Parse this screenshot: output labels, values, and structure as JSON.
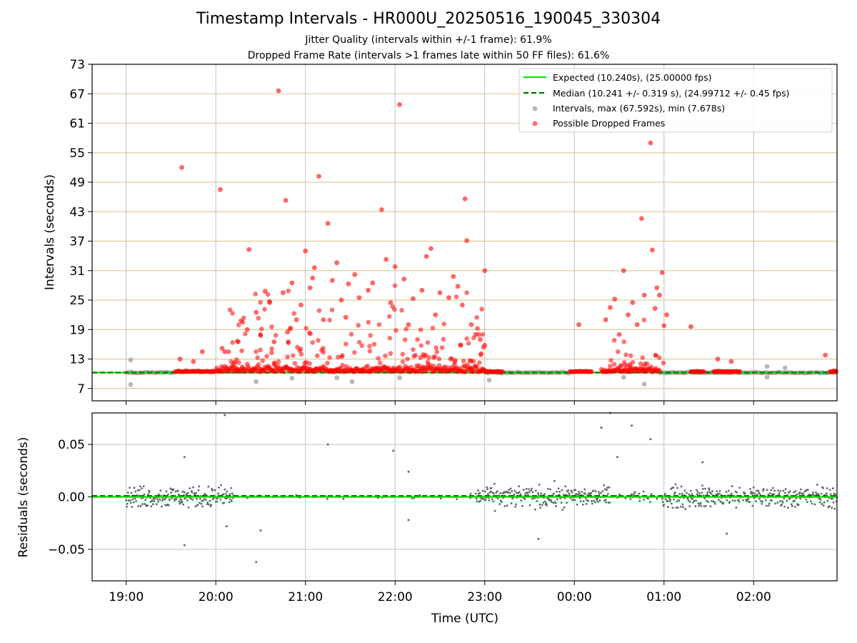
{
  "header": {
    "title": "Timestamp Intervals - HR000U_20250516_190045_330304",
    "subtitle_1": "Jitter Quality (intervals within +/-1 frame): 61.9%",
    "subtitle_2": "Dropped Frame Rate (intervals >1 frames late within 50 FF files): 61.6%"
  },
  "chart_data": [
    {
      "type": "scatter",
      "panel": "intervals",
      "ylabel": "Intervals (seconds)",
      "ylim": [
        4.5,
        73
      ],
      "yticks": [
        "7",
        "13",
        "19",
        "25",
        "31",
        "37",
        "43",
        "49",
        "55",
        "61",
        "67",
        "73"
      ],
      "grid": true,
      "legend_position": "top-right",
      "legend": {
        "expected": "Expected (10.240s), (25.00000 fps)",
        "median": "Median (10.241 +/- 0.319 s), (24.99712 +/- 0.45 fps)",
        "intervals": "Intervals, max (67.592s), min (7.678s)",
        "dropped": "Possible Dropped Frames"
      },
      "expected_value": 10.24,
      "median_value": 10.241,
      "series_dropped_highlights": [
        {
          "x": 19.6,
          "y": 13.0
        },
        {
          "x": 19.62,
          "y": 52.0
        },
        {
          "x": 19.75,
          "y": 12.5
        },
        {
          "x": 19.85,
          "y": 14.5
        },
        {
          "x": 20.05,
          "y": 47.5
        },
        {
          "x": 20.07,
          "y": 15.2
        },
        {
          "x": 20.1,
          "y": 14.5
        },
        {
          "x": 20.2,
          "y": 12.0
        },
        {
          "x": 20.25,
          "y": 16.5
        },
        {
          "x": 20.3,
          "y": 20.5
        },
        {
          "x": 20.35,
          "y": 19.0
        },
        {
          "x": 20.37,
          "y": 35.3
        },
        {
          "x": 20.45,
          "y": 22.5
        },
        {
          "x": 20.5,
          "y": 17.8
        },
        {
          "x": 20.55,
          "y": 26.8
        },
        {
          "x": 20.6,
          "y": 24.5
        },
        {
          "x": 20.65,
          "y": 16.5
        },
        {
          "x": 20.7,
          "y": 67.6
        },
        {
          "x": 20.75,
          "y": 26.5
        },
        {
          "x": 20.78,
          "y": 45.3
        },
        {
          "x": 20.8,
          "y": 18.5
        },
        {
          "x": 20.85,
          "y": 28.5
        },
        {
          "x": 20.9,
          "y": 21.0
        },
        {
          "x": 20.95,
          "y": 24.0
        },
        {
          "x": 21.0,
          "y": 35.0
        },
        {
          "x": 21.05,
          "y": 27.5
        },
        {
          "x": 21.08,
          "y": 29.5
        },
        {
          "x": 21.1,
          "y": 31.6
        },
        {
          "x": 21.15,
          "y": 50.2
        },
        {
          "x": 21.2,
          "y": 21.0
        },
        {
          "x": 21.25,
          "y": 40.6
        },
        {
          "x": 21.3,
          "y": 29.0
        },
        {
          "x": 21.35,
          "y": 32.6
        },
        {
          "x": 21.4,
          "y": 25.0
        },
        {
          "x": 21.45,
          "y": 21.5
        },
        {
          "x": 21.48,
          "y": 28.3
        },
        {
          "x": 21.55,
          "y": 30.2
        },
        {
          "x": 21.6,
          "y": 25.5
        },
        {
          "x": 21.7,
          "y": 27.0
        },
        {
          "x": 21.75,
          "y": 28.5
        },
        {
          "x": 21.85,
          "y": 43.4
        },
        {
          "x": 21.9,
          "y": 33.3
        },
        {
          "x": 21.95,
          "y": 24.5
        },
        {
          "x": 22.0,
          "y": 31.8
        },
        {
          "x": 22.05,
          "y": 64.8
        },
        {
          "x": 22.1,
          "y": 29.3
        },
        {
          "x": 22.15,
          "y": 20.0
        },
        {
          "x": 22.2,
          "y": 25.3
        },
        {
          "x": 22.3,
          "y": 27.0
        },
        {
          "x": 22.35,
          "y": 33.9
        },
        {
          "x": 22.4,
          "y": 35.5
        },
        {
          "x": 22.45,
          "y": 22.0
        },
        {
          "x": 22.5,
          "y": 26.5
        },
        {
          "x": 22.6,
          "y": 25.5
        },
        {
          "x": 22.65,
          "y": 29.8
        },
        {
          "x": 22.7,
          "y": 27.8
        },
        {
          "x": 22.75,
          "y": 24.0
        },
        {
          "x": 22.78,
          "y": 45.6
        },
        {
          "x": 22.8,
          "y": 37.1
        },
        {
          "x": 22.85,
          "y": 20.0
        },
        {
          "x": 22.9,
          "y": 18.0
        },
        {
          "x": 22.95,
          "y": 17.0
        },
        {
          "x": 23.0,
          "y": 31.0
        },
        {
          "x": 23.0,
          "y": 15.8
        },
        {
          "x": 24.05,
          "y": 20.0
        },
        {
          "x": 24.35,
          "y": 21.0
        },
        {
          "x": 24.4,
          "y": 23.5
        },
        {
          "x": 24.45,
          "y": 25.2
        },
        {
          "x": 24.5,
          "y": 18.0
        },
        {
          "x": 24.55,
          "y": 31.0
        },
        {
          "x": 24.6,
          "y": 22.0
        },
        {
          "x": 24.65,
          "y": 24.5
        },
        {
          "x": 24.7,
          "y": 20.0
        },
        {
          "x": 24.75,
          "y": 41.6
        },
        {
          "x": 24.78,
          "y": 26.0
        },
        {
          "x": 24.85,
          "y": 57.0
        },
        {
          "x": 24.87,
          "y": 35.2
        },
        {
          "x": 24.9,
          "y": 23.3
        },
        {
          "x": 24.92,
          "y": 27.5
        },
        {
          "x": 24.95,
          "y": 26.0
        },
        {
          "x": 24.98,
          "y": 30.6
        },
        {
          "x": 25.0,
          "y": 19.8
        },
        {
          "x": 25.03,
          "y": 22.0
        },
        {
          "x": 25.3,
          "y": 19.6
        },
        {
          "x": 25.6,
          "y": 13.0
        },
        {
          "x": 25.75,
          "y": 12.5
        },
        {
          "x": 26.8,
          "y": 13.8
        }
      ],
      "series_intervals_outliers": [
        {
          "x": 19.05,
          "y": 12.8
        },
        {
          "x": 19.05,
          "y": 7.8
        },
        {
          "x": 20.45,
          "y": 8.4
        },
        {
          "x": 20.85,
          "y": 9.1
        },
        {
          "x": 21.35,
          "y": 9.2
        },
        {
          "x": 21.52,
          "y": 8.4
        },
        {
          "x": 22.05,
          "y": 9.2
        },
        {
          "x": 23.05,
          "y": 8.7
        },
        {
          "x": 24.55,
          "y": 9.3
        },
        {
          "x": 24.78,
          "y": 7.9
        },
        {
          "x": 26.15,
          "y": 11.5
        },
        {
          "x": 26.15,
          "y": 9.3
        },
        {
          "x": 26.35,
          "y": 11.2
        }
      ]
    },
    {
      "type": "scatter",
      "panel": "residuals",
      "xlabel": "Time (UTC)",
      "ylabel": "Residuals (seconds)",
      "ylim": [
        -0.08,
        0.08
      ],
      "yticks": [
        "0.05",
        "0.00",
        "−0.05"
      ],
      "xticks": [
        "19:00",
        "20:00",
        "21:00",
        "22:00",
        "23:00",
        "00:00",
        "01:00",
        "02:00"
      ],
      "xlim": [
        18.62,
        26.93
      ],
      "grid": true,
      "series_residual_outliers": [
        {
          "x": 19.65,
          "y": 0.038
        },
        {
          "x": 19.65,
          "y": -0.046
        },
        {
          "x": 20.1,
          "y": 0.078
        },
        {
          "x": 20.12,
          "y": -0.028
        },
        {
          "x": 20.45,
          "y": -0.062
        },
        {
          "x": 20.5,
          "y": -0.032
        },
        {
          "x": 21.25,
          "y": 0.05
        },
        {
          "x": 21.98,
          "y": 0.044
        },
        {
          "x": 22.15,
          "y": 0.024
        },
        {
          "x": 22.15,
          "y": -0.022
        },
        {
          "x": 23.6,
          "y": -0.04
        },
        {
          "x": 24.3,
          "y": 0.066
        },
        {
          "x": 24.4,
          "y": 0.08
        },
        {
          "x": 24.48,
          "y": 0.038
        },
        {
          "x": 24.64,
          "y": 0.068
        },
        {
          "x": 24.85,
          "y": 0.055
        },
        {
          "x": 25.43,
          "y": 0.033
        },
        {
          "x": 25.7,
          "y": -0.035
        }
      ]
    }
  ]
}
